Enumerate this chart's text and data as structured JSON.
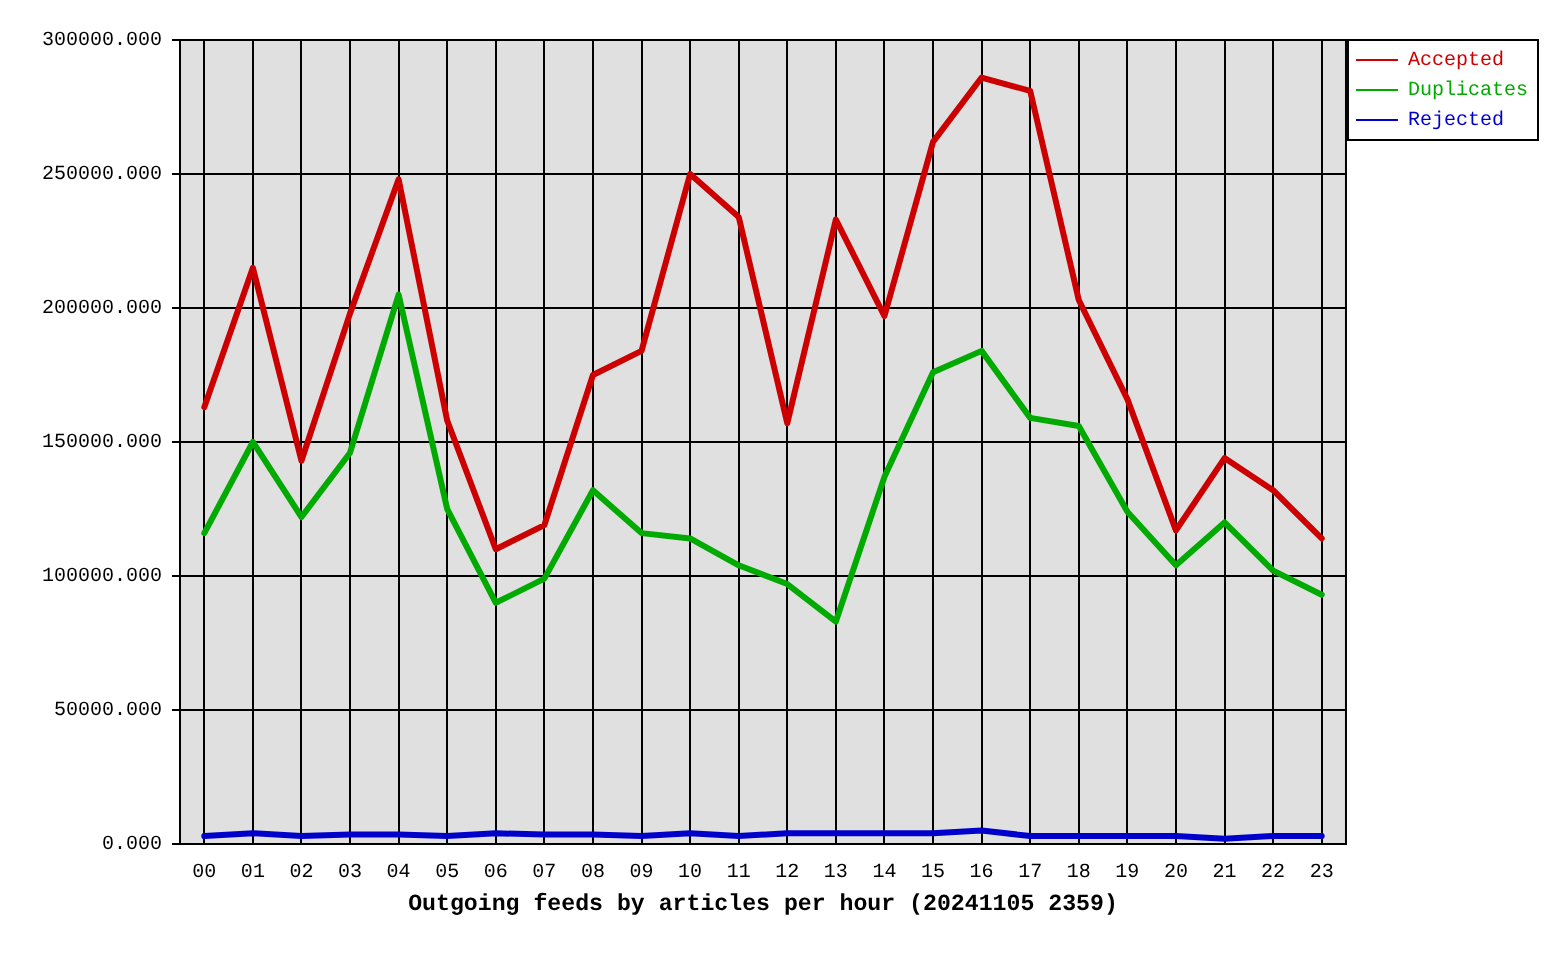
{
  "chart_data": {
    "type": "line",
    "xlabel": "Outgoing feeds by articles per hour (20241105 2359)",
    "categories": [
      "00",
      "01",
      "02",
      "03",
      "04",
      "05",
      "06",
      "07",
      "08",
      "09",
      "10",
      "11",
      "12",
      "13",
      "14",
      "15",
      "16",
      "17",
      "18",
      "19",
      "20",
      "21",
      "22",
      "23"
    ],
    "series": [
      {
        "name": "Accepted",
        "color": "#cc0000",
        "values": [
          163000,
          215000,
          143000,
          198000,
          248000,
          158000,
          110000,
          119000,
          175000,
          184000,
          250000,
          234000,
          157000,
          233000,
          197000,
          262000,
          286000,
          281000,
          203000,
          166000,
          117000,
          144000,
          132000,
          114000
        ]
      },
      {
        "name": "Duplicates",
        "color": "#00aa00",
        "values": [
          116000,
          150000,
          122000,
          146000,
          205000,
          125000,
          90000,
          99000,
          132000,
          116000,
          114000,
          104000,
          97000,
          83000,
          137000,
          176000,
          184000,
          159000,
          156000,
          124000,
          104000,
          120000,
          102000,
          93000
        ]
      },
      {
        "name": "Rejected",
        "color": "#0000cc",
        "values": [
          3000,
          4000,
          3000,
          3500,
          3500,
          3000,
          4000,
          3500,
          3500,
          3000,
          4000,
          3000,
          4000,
          4000,
          4000,
          4000,
          5000,
          3000,
          3000,
          3000,
          3000,
          2000,
          3000,
          3000
        ]
      }
    ],
    "ylim": [
      0,
      300000
    ],
    "yticks": [
      {
        "value": 0,
        "label": "0.000"
      },
      {
        "value": 50000,
        "label": "50000.000"
      },
      {
        "value": 100000,
        "label": "100000.000"
      },
      {
        "value": 150000,
        "label": "150000.000"
      },
      {
        "value": 200000,
        "label": "200000.000"
      },
      {
        "value": 250000,
        "label": "250000.000"
      },
      {
        "value": 300000,
        "label": "300000.000"
      }
    ],
    "grid": true,
    "legend": "top right",
    "marker": "none",
    "line_style": "solid"
  }
}
